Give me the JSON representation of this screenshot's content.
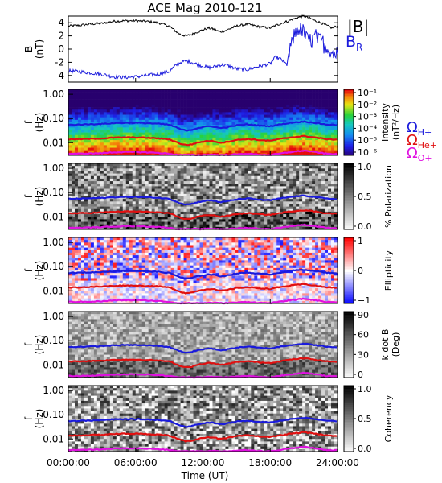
{
  "chart_data": {
    "type": "spectrogram",
    "title": "ACE Mag 2010-121",
    "xlabel": "Time (UT)",
    "x_ticks": [
      "00:00:00",
      "06:00:00",
      "12:00:00",
      "18:00:00",
      "24:00:00"
    ],
    "xlim_hours": [
      0,
      24
    ],
    "line_panel": {
      "ylabel_main": "B",
      "ylabel_unit": "(nT)",
      "y_ticks": [
        "4",
        "2",
        "0",
        "-2",
        "-4"
      ],
      "ylim": [
        -5,
        5
      ],
      "series": [
        {
          "name": "|B|",
          "color": "#000000",
          "hours": [
            0,
            1,
            2,
            3,
            4,
            5,
            6,
            7,
            8,
            9,
            9.5,
            10,
            10.5,
            11,
            11.5,
            12,
            12.5,
            13,
            13.5,
            14,
            15,
            16,
            17,
            18,
            18.5,
            19,
            19.5,
            20,
            20.5,
            21,
            21.5,
            22,
            22.5,
            23,
            23.5,
            24
          ],
          "values": [
            3.5,
            3.6,
            3.8,
            3.9,
            4.2,
            4.3,
            4.3,
            4.2,
            4.0,
            3.5,
            2.8,
            2.2,
            2.0,
            2.2,
            2.6,
            2.9,
            3.2,
            3.0,
            2.6,
            2.8,
            3.5,
            3.8,
            3.4,
            3.2,
            3.6,
            3.9,
            4.2,
            4.5,
            4.8,
            5.0,
            4.7,
            4.3,
            4.0,
            3.6,
            3.2,
            3.5
          ]
        },
        {
          "name": "BR",
          "color": "#1a1adc",
          "hours": [
            0,
            1,
            2,
            3,
            4,
            5,
            6,
            7,
            8,
            9,
            9.5,
            10,
            10.5,
            11,
            11.5,
            12,
            12.5,
            13,
            13.5,
            14,
            15,
            16,
            17,
            18,
            18.5,
            19,
            19.5,
            20,
            20.5,
            21,
            21.5,
            22,
            22.5,
            23,
            23.5,
            24
          ],
          "values": [
            -3.3,
            -3.4,
            -3.6,
            -3.8,
            -4.2,
            -4.3,
            -4.2,
            -4.0,
            -3.8,
            -3.4,
            -2.6,
            -2.0,
            -1.8,
            -2.0,
            -2.3,
            -2.6,
            -2.8,
            -2.7,
            -2.4,
            -2.4,
            -3.0,
            -3.1,
            -2.6,
            -2.2,
            -1.2,
            -1.6,
            -2.4,
            1.5,
            3.2,
            2.5,
            1.0,
            2.0,
            1.2,
            0.5,
            -0.5,
            -0.8
          ]
        }
      ],
      "legend": [
        "|B|",
        "B",
        "R"
      ]
    },
    "spectrogram_panels": [
      {
        "ylabel": "f",
        "yunit": "(Hz)",
        "y_ticks": [
          "1.00",
          "0.10",
          "0.01"
        ],
        "ylim": [
          0.003,
          1.6
        ],
        "colorbar": {
          "label": "Intensity",
          "unit": "(nT²/Hz)",
          "ticks": [
            "10⁻¹",
            "10⁻²",
            "10⁻³",
            "10⁻⁴",
            "10⁻⁵",
            "10⁻⁶"
          ],
          "scheme": "rainbow"
        }
      },
      {
        "ylabel": "f",
        "yunit": "(Hz)",
        "y_ticks": [
          "1.00",
          "0.10",
          "0.01"
        ],
        "ylim": [
          0.003,
          1.6
        ],
        "colorbar": {
          "label": "% Polarization",
          "unit": "",
          "ticks": [
            "1.0",
            "0.5",
            "0.0"
          ],
          "scheme": "gray"
        }
      },
      {
        "ylabel": "f",
        "yunit": "(Hz)",
        "y_ticks": [
          "1.00",
          "0.10",
          "0.01"
        ],
        "ylim": [
          0.003,
          1.6
        ],
        "colorbar": {
          "label": "Ellipticity",
          "unit": "",
          "ticks": [
            "1",
            "0",
            "−1"
          ],
          "scheme": "redblue"
        }
      },
      {
        "ylabel": "f",
        "yunit": "(Hz)",
        "y_ticks": [
          "1.00",
          "0.10",
          "0.01"
        ],
        "ylim": [
          0.003,
          1.6
        ],
        "colorbar": {
          "label": "k dot B",
          "unit": "(Deg)",
          "ticks": [
            "90",
            "60",
            "30",
            "0"
          ],
          "scheme": "gray"
        }
      },
      {
        "ylabel": "f",
        "yunit": "(Hz)",
        "y_ticks": [
          "1.00",
          "0.10",
          "0.01"
        ],
        "ylim": [
          0.003,
          1.6
        ],
        "colorbar": {
          "label": "Coherency",
          "unit": "",
          "ticks": [
            "1.0",
            "0.5",
            "0.0"
          ],
          "scheme": "gray"
        }
      }
    ],
    "gyrofrequency_lines": [
      {
        "name": "ΩH+",
        "color": "#1a1adc",
        "hours": [
          0,
          1,
          2,
          3,
          4,
          5,
          6,
          7,
          8,
          9,
          9.5,
          10,
          10.5,
          11,
          11.5,
          12,
          12.5,
          13,
          13.5,
          14,
          15,
          16,
          17,
          18,
          19,
          20,
          21,
          22,
          23,
          24
        ],
        "hz": [
          0.055,
          0.056,
          0.058,
          0.06,
          0.064,
          0.066,
          0.066,
          0.064,
          0.061,
          0.055,
          0.045,
          0.036,
          0.032,
          0.034,
          0.04,
          0.044,
          0.048,
          0.046,
          0.04,
          0.042,
          0.052,
          0.057,
          0.051,
          0.048,
          0.058,
          0.068,
          0.075,
          0.066,
          0.056,
          0.054
        ]
      },
      {
        "name": "ΩHe+",
        "color": "#e01010",
        "hours": [
          0,
          1,
          2,
          3,
          4,
          5,
          6,
          7,
          8,
          9,
          9.5,
          10,
          10.5,
          11,
          11.5,
          12,
          12.5,
          13,
          13.5,
          14,
          15,
          16,
          17,
          18,
          19,
          20,
          21,
          22,
          23,
          24
        ],
        "hz": [
          0.0138,
          0.014,
          0.0145,
          0.015,
          0.016,
          0.0165,
          0.0165,
          0.016,
          0.0152,
          0.0138,
          0.0112,
          0.009,
          0.008,
          0.0085,
          0.01,
          0.011,
          0.012,
          0.0115,
          0.01,
          0.0105,
          0.013,
          0.0142,
          0.0128,
          0.012,
          0.0145,
          0.017,
          0.0188,
          0.0165,
          0.014,
          0.0135
        ]
      },
      {
        "name": "ΩO+",
        "color": "#e010e0",
        "hours": [
          0,
          1,
          2,
          3,
          4,
          5,
          6,
          7,
          8,
          9,
          9.5,
          10,
          10.5,
          11,
          11.5,
          12,
          12.5,
          13,
          13.5,
          14,
          15,
          16,
          17,
          18,
          19,
          20,
          21,
          22,
          23,
          24
        ],
        "hz": [
          0.0035,
          0.0035,
          0.0036,
          0.0037,
          0.004,
          0.0041,
          0.0041,
          0.004,
          0.0038,
          0.0035,
          0.0032,
          0.0031,
          0.0031,
          0.0031,
          0.0031,
          0.0031,
          0.0032,
          0.0032,
          0.0031,
          0.0031,
          0.0033,
          0.0035,
          0.0032,
          0.0031,
          0.0036,
          0.0042,
          0.0047,
          0.0041,
          0.0035,
          0.0034
        ]
      }
    ],
    "gyro_legend": [
      {
        "symbol": "Ω",
        "sub": "H+",
        "color": "#1a1adc"
      },
      {
        "symbol": "Ω",
        "sub": "He+",
        "color": "#e01010"
      },
      {
        "symbol": "Ω",
        "sub": "O+",
        "color": "#e010e0"
      }
    ]
  }
}
